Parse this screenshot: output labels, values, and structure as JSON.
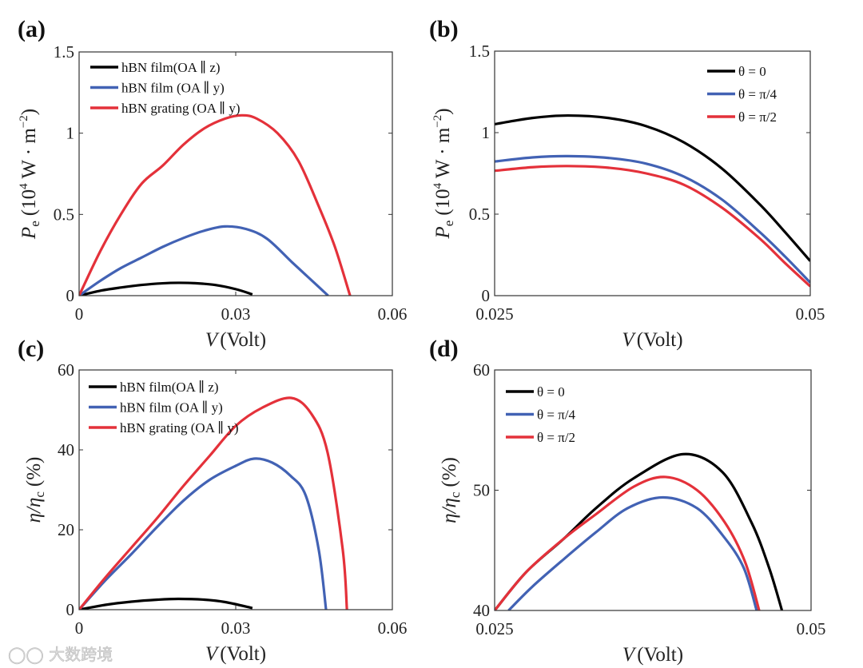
{
  "figure": {
    "watermark": "大数跨境"
  },
  "colors": {
    "black": "#000000",
    "blue": "#4262b4",
    "red": "#e4313a",
    "axis": "#333333"
  },
  "chart_data": [
    {
      "id": "a",
      "panel_label": "(a)",
      "type": "line",
      "xlabel": {
        "var": "V",
        "unit": "(Volt)"
      },
      "ylabel": {
        "var": "P",
        "sub": "e",
        "pre": "(10",
        "sup1": "4",
        "mid": " W · m",
        "sup2": "−2",
        "post": ")"
      },
      "xlim": [
        0,
        0.06
      ],
      "ylim": [
        0,
        1.5
      ],
      "xticks": [
        {
          "v": 0,
          "label": "0"
        },
        {
          "v": 0.03,
          "label": "0.03"
        },
        {
          "v": 0.06,
          "label": "0.06"
        }
      ],
      "yticks": [
        {
          "v": 0,
          "label": "0"
        },
        {
          "v": 0.5,
          "label": "0.5"
        },
        {
          "v": 1,
          "label": "1"
        },
        {
          "v": 1.5,
          "label": "1.5"
        }
      ],
      "legend_position": "top-left",
      "series": [
        {
          "name": "hBN film(OA ∥ z)",
          "color": "black",
          "x": [
            0,
            0.004,
            0.008,
            0.012,
            0.016,
            0.019,
            0.022,
            0.026,
            0.03,
            0.0332
          ],
          "y": [
            0,
            0.03,
            0.05,
            0.066,
            0.076,
            0.079,
            0.077,
            0.066,
            0.04,
            0.008
          ]
        },
        {
          "name": "hBN film (OA ∥ y)",
          "color": "blue",
          "x": [
            0,
            0.004,
            0.008,
            0.012,
            0.016,
            0.02,
            0.024,
            0.0279,
            0.032,
            0.036,
            0.0408,
            0.044,
            0.0477
          ],
          "y": [
            0,
            0.09,
            0.17,
            0.235,
            0.3,
            0.355,
            0.4,
            0.426,
            0.41,
            0.35,
            0.205,
            0.11,
            0
          ]
        },
        {
          "name": "hBN grating (OA ∥ y)",
          "color": "red",
          "x": [
            0,
            0.004,
            0.008,
            0.012,
            0.016,
            0.02,
            0.024,
            0.028,
            0.0312,
            0.034,
            0.038,
            0.042,
            0.0459,
            0.049,
            0.0519
          ],
          "y": [
            0,
            0.27,
            0.5,
            0.69,
            0.8,
            0.93,
            1.03,
            1.09,
            1.11,
            1.09,
            1.0,
            0.83,
            0.55,
            0.3,
            0
          ]
        }
      ]
    },
    {
      "id": "b",
      "panel_label": "(b)",
      "type": "line",
      "xlabel": {
        "var": "V",
        "unit": "(Volt)"
      },
      "ylabel": {
        "var": "P",
        "sub": "e",
        "pre": "(10",
        "sup1": "4",
        "mid": " W · m",
        "sup2": "−2",
        "post": ")"
      },
      "xlim": [
        0.025,
        0.05
      ],
      "ylim": [
        0,
        1.5
      ],
      "xticks": [
        {
          "v": 0.025,
          "label": "0.025"
        },
        {
          "v": 0.05,
          "label": "0.05"
        }
      ],
      "yticks": [
        {
          "v": 0,
          "label": "0"
        },
        {
          "v": 0.5,
          "label": "0.5"
        },
        {
          "v": 1,
          "label": "1"
        },
        {
          "v": 1.5,
          "label": "1.5"
        }
      ],
      "legend_position": "top-right",
      "series": [
        {
          "name": "θ = 0",
          "color": "black",
          "x": [
            0.025,
            0.028,
            0.0308,
            0.034,
            0.037,
            0.04,
            0.043,
            0.046,
            0.048,
            0.05
          ],
          "y": [
            1.052,
            1.09,
            1.105,
            1.09,
            1.04,
            0.94,
            0.78,
            0.56,
            0.39,
            0.212
          ]
        },
        {
          "name": "θ = π/4",
          "color": "blue",
          "x": [
            0.025,
            0.028,
            0.0308,
            0.034,
            0.037,
            0.04,
            0.043,
            0.046,
            0.048,
            0.05
          ],
          "y": [
            0.823,
            0.848,
            0.856,
            0.845,
            0.81,
            0.73,
            0.59,
            0.39,
            0.24,
            0.08
          ]
        },
        {
          "name": "θ = π/2",
          "color": "red",
          "x": [
            0.025,
            0.028,
            0.0308,
            0.034,
            0.037,
            0.04,
            0.043,
            0.046,
            0.048,
            0.05
          ],
          "y": [
            0.766,
            0.788,
            0.795,
            0.785,
            0.75,
            0.68,
            0.54,
            0.35,
            0.2,
            0.057
          ]
        }
      ]
    },
    {
      "id": "c",
      "panel_label": "(c)",
      "type": "line",
      "xlabel": {
        "var": "V",
        "unit": "(Volt)"
      },
      "ylabel": {
        "var": "η/η",
        "sub": "c",
        "pre": "(%)",
        "sup1": "",
        "mid": "",
        "sup2": "",
        "post": ""
      },
      "xlim": [
        0,
        0.06
      ],
      "ylim": [
        0,
        60
      ],
      "xticks": [
        {
          "v": 0,
          "label": "0"
        },
        {
          "v": 0.03,
          "label": "0.03"
        },
        {
          "v": 0.06,
          "label": "0.06"
        }
      ],
      "yticks": [
        {
          "v": 0,
          "label": "0"
        },
        {
          "v": 20,
          "label": "20"
        },
        {
          "v": 40,
          "label": "40"
        },
        {
          "v": 60,
          "label": "60"
        }
      ],
      "legend_position": "top-left",
      "series": [
        {
          "name": "hBN film(OA ∥ z)",
          "color": "black",
          "x": [
            0,
            0.005,
            0.01,
            0.015,
            0.019,
            0.024,
            0.028,
            0.0332
          ],
          "y": [
            0,
            1.2,
            2.0,
            2.5,
            2.7,
            2.5,
            1.9,
            0.4
          ]
        },
        {
          "name": "hBN film (OA ∥ y)",
          "color": "blue",
          "x": [
            0,
            0.005,
            0.01,
            0.015,
            0.02,
            0.025,
            0.03,
            0.0335,
            0.037,
            0.0405,
            0.0434,
            0.0459,
            0.0473
          ],
          "y": [
            0,
            7.3,
            13.9,
            20.8,
            27.3,
            32.5,
            36,
            37.8,
            36.8,
            33.5,
            28.6,
            15,
            0
          ]
        },
        {
          "name": "hBN grating (OA ∥ y)",
          "color": "red",
          "x": [
            0,
            0.005,
            0.01,
            0.015,
            0.02,
            0.025,
            0.03,
            0.035,
            0.0406,
            0.0445,
            0.0476,
            0.0505,
            0.0513
          ],
          "y": [
            0,
            8,
            15.5,
            23,
            31,
            38.5,
            46,
            50.5,
            53,
            49,
            39.3,
            15,
            0
          ]
        }
      ]
    },
    {
      "id": "d",
      "panel_label": "(d)",
      "type": "line",
      "xlabel": {
        "var": "V",
        "unit": "(Volt)"
      },
      "ylabel": {
        "var": "η/η",
        "sub": "c",
        "pre": "(%)",
        "sup1": "",
        "mid": "",
        "sup2": "",
        "post": ""
      },
      "xlim": [
        0.025,
        0.05
      ],
      "ylim": [
        40,
        60
      ],
      "xticks": [
        {
          "v": 0.025,
          "label": "0.025"
        },
        {
          "v": 0.05,
          "label": "0.05"
        }
      ],
      "yticks": [
        {
          "v": 40,
          "label": "40"
        },
        {
          "v": 50,
          "label": "50"
        },
        {
          "v": 60,
          "label": "60"
        }
      ],
      "legend_position": "top-left",
      "series": [
        {
          "name": "θ = 0",
          "color": "black",
          "x": [
            0.025,
            0.0275,
            0.0305,
            0.033,
            0.036,
            0.0399,
            0.043,
            0.0453,
            0.0467,
            0.0477
          ],
          "y": [
            40,
            43.2,
            46,
            48.5,
            51,
            53,
            51.5,
            47.3,
            43.5,
            40
          ]
        },
        {
          "name": "θ = π/4",
          "color": "blue",
          "x": [
            0.0261,
            0.028,
            0.0305,
            0.033,
            0.0355,
            0.0383,
            0.041,
            0.0432,
            0.0447,
            0.0457
          ],
          "y": [
            40,
            42,
            44.3,
            46.5,
            48.5,
            49.4,
            48.5,
            46,
            43.5,
            40
          ]
        },
        {
          "name": "θ = π/2",
          "color": "red",
          "x": [
            0.025,
            0.0275,
            0.0305,
            0.033,
            0.036,
            0.0385,
            0.041,
            0.0432,
            0.0448,
            0.0459
          ],
          "y": [
            40,
            43.2,
            46,
            48,
            50.3,
            51.1,
            50,
            47.3,
            44,
            40
          ]
        }
      ]
    }
  ]
}
